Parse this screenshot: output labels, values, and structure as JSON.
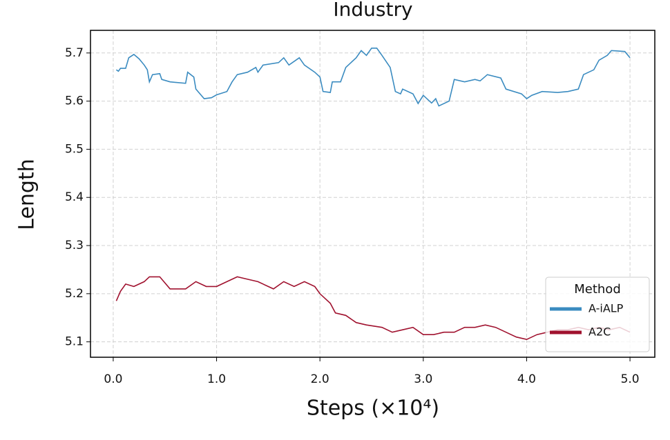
{
  "chart_data": {
    "type": "line",
    "title": "Industry",
    "x_label": "Steps (×10⁴)",
    "y_label": "Length",
    "xlim": [
      -0.22,
      5.24
    ],
    "ylim": [
      5.068,
      5.747
    ],
    "grid": true,
    "xticks": [
      {
        "value": 0,
        "label": "0.0"
      },
      {
        "value": 1,
        "label": "1.0"
      },
      {
        "value": 2,
        "label": "2.0"
      },
      {
        "value": 3,
        "label": "3.0"
      },
      {
        "value": 4,
        "label": "4.0"
      },
      {
        "value": 5,
        "label": "5.0"
      }
    ],
    "yticks": [
      5.1,
      5.2,
      5.3,
      5.4,
      5.5,
      5.6,
      5.7
    ],
    "legend_title": "Method",
    "legend_position": "lower right",
    "series": [
      {
        "name": "A-iALP",
        "color": "#3a8bc0",
        "x": [
          0.03,
          0.05,
          0.07,
          0.12,
          0.15,
          0.2,
          0.25,
          0.3,
          0.33,
          0.35,
          0.38,
          0.45,
          0.47,
          0.55,
          0.7,
          0.72,
          0.78,
          0.8,
          0.88,
          0.95,
          1.0,
          1.1,
          1.15,
          1.2,
          1.3,
          1.38,
          1.4,
          1.45,
          1.6,
          1.65,
          1.7,
          1.8,
          1.85,
          1.95,
          2.0,
          2.03,
          2.1,
          2.12,
          2.2,
          2.25,
          2.3,
          2.35,
          2.4,
          2.45,
          2.5,
          2.55,
          2.6,
          2.68,
          2.73,
          2.78,
          2.8,
          2.9,
          2.95,
          3.0,
          3.08,
          3.12,
          3.15,
          3.25,
          3.3,
          3.4,
          3.5,
          3.55,
          3.62,
          3.75,
          3.8,
          3.95,
          4.0,
          4.05,
          4.15,
          4.3,
          4.4,
          4.5,
          4.55,
          4.65,
          4.7,
          4.78,
          4.82,
          4.95,
          5.0
        ],
        "values": [
          5.665,
          5.662,
          5.668,
          5.668,
          5.69,
          5.697,
          5.688,
          5.675,
          5.665,
          5.64,
          5.655,
          5.657,
          5.645,
          5.64,
          5.637,
          5.66,
          5.65,
          5.625,
          5.605,
          5.607,
          5.613,
          5.62,
          5.64,
          5.655,
          5.66,
          5.67,
          5.66,
          5.675,
          5.68,
          5.69,
          5.675,
          5.69,
          5.675,
          5.66,
          5.65,
          5.62,
          5.618,
          5.64,
          5.64,
          5.67,
          5.68,
          5.69,
          5.705,
          5.695,
          5.71,
          5.71,
          5.695,
          5.67,
          5.62,
          5.615,
          5.625,
          5.615,
          5.595,
          5.612,
          5.596,
          5.605,
          5.59,
          5.6,
          5.645,
          5.64,
          5.645,
          5.642,
          5.655,
          5.648,
          5.625,
          5.615,
          5.605,
          5.612,
          5.62,
          5.618,
          5.62,
          5.625,
          5.655,
          5.665,
          5.685,
          5.695,
          5.705,
          5.703,
          5.69
        ]
      },
      {
        "name": "A2C",
        "color": "#a0112e",
        "x": [
          0.03,
          0.07,
          0.12,
          0.2,
          0.3,
          0.35,
          0.45,
          0.55,
          0.7,
          0.8,
          0.9,
          1.0,
          1.1,
          1.2,
          1.3,
          1.4,
          1.55,
          1.65,
          1.75,
          1.85,
          1.95,
          2.0,
          2.1,
          2.15,
          2.25,
          2.35,
          2.45,
          2.6,
          2.7,
          2.8,
          2.9,
          3.0,
          3.1,
          3.2,
          3.3,
          3.4,
          3.5,
          3.6,
          3.7,
          3.8,
          3.9,
          4.0,
          4.1,
          4.2,
          4.3,
          4.4,
          4.5,
          4.6,
          4.7,
          4.8,
          4.9,
          5.0
        ],
        "values": [
          5.185,
          5.205,
          5.22,
          5.215,
          5.225,
          5.235,
          5.235,
          5.21,
          5.21,
          5.225,
          5.215,
          5.215,
          5.225,
          5.235,
          5.23,
          5.225,
          5.21,
          5.225,
          5.215,
          5.225,
          5.215,
          5.2,
          5.18,
          5.16,
          5.155,
          5.14,
          5.135,
          5.13,
          5.12,
          5.125,
          5.13,
          5.115,
          5.115,
          5.12,
          5.12,
          5.13,
          5.13,
          5.135,
          5.13,
          5.12,
          5.11,
          5.105,
          5.115,
          5.12,
          5.125,
          5.125,
          5.13,
          5.125,
          5.13,
          5.125,
          5.13,
          5.12
        ]
      }
    ]
  }
}
